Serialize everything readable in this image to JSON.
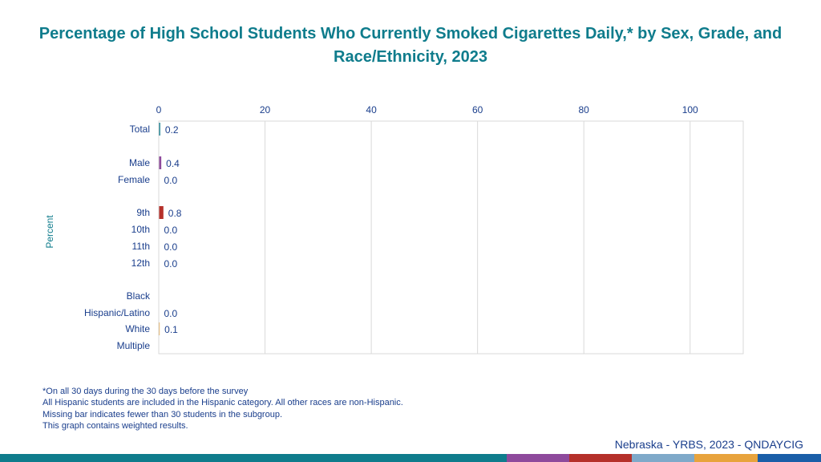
{
  "title": "Percentage of High School Students Who Currently Smoked Cigarettes Daily,* by Sex, Grade, and Race/Ethnicity, 2023",
  "chart_data": {
    "type": "bar",
    "orientation": "horizontal",
    "ylabel": "Percent",
    "xlim": [
      0,
      110
    ],
    "xticks": [
      0,
      20,
      40,
      60,
      80,
      100
    ],
    "grid": true,
    "categories": [
      "Total",
      "Male",
      "Female",
      "9th",
      "10th",
      "11th",
      "12th",
      "Black",
      "Hispanic/Latino",
      "White",
      "Multiple"
    ],
    "values": [
      0.2,
      0.4,
      0.0,
      0.8,
      0.0,
      0.0,
      0.0,
      null,
      0.0,
      0.1,
      null
    ],
    "value_labels": [
      "0.2",
      "0.4",
      "0.0",
      "0.8",
      "0.0",
      "0.0",
      "0.0",
      "",
      "0.0",
      "0.1",
      ""
    ],
    "bar_colors": [
      "#0f7c8c",
      "#8e4a9c",
      "#8e4a9c",
      "#b5302a",
      "#b5302a",
      "#b5302a",
      "#b5302a",
      "#e8a33c",
      "#e8a33c",
      "#e8a33c",
      "#e8a33c"
    ]
  },
  "footnotes": [
    "*On all 30 days during the 30 days before the survey",
    "All Hispanic students are included in the Hispanic category.  All other races are non-Hispanic.",
    "Missing bar indicates fewer than 30 students in the subgroup.",
    "This graph contains weighted results."
  ],
  "source": "Nebraska - YRBS, 2023 - QNDAYCIG",
  "colors": {
    "accent": "#0f7c8c",
    "text": "#1a3e8c",
    "strip": [
      "#0f7c8c",
      "#8e4a9c",
      "#b5302a",
      "#7fa9c9",
      "#e8a33c",
      "#1a5ea8"
    ]
  }
}
